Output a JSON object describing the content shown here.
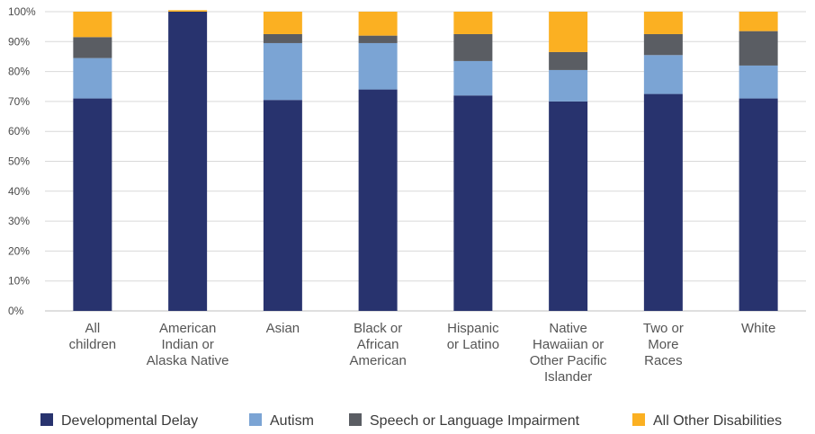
{
  "chart_data": {
    "type": "bar",
    "stacked": true,
    "categories": [
      [
        "All",
        "children"
      ],
      [
        "American",
        "Indian or",
        "Alaska Native"
      ],
      [
        "Asian"
      ],
      [
        "Black or",
        "African",
        "American"
      ],
      [
        "Hispanic",
        "or Latino"
      ],
      [
        "Native",
        "Hawaiian or",
        "Other Pacific",
        "Islander"
      ],
      [
        "Two or",
        "More",
        "Races"
      ],
      [
        "White"
      ]
    ],
    "series": [
      {
        "name": "Developmental Delay",
        "color": "#28336e",
        "values": [
          71,
          100,
          70.5,
          74,
          72,
          70,
          72.5,
          71
        ]
      },
      {
        "name": "Autism",
        "color": "#7ba4d4",
        "values": [
          13.5,
          0,
          19,
          15.5,
          11.5,
          10.5,
          13,
          11
        ]
      },
      {
        "name": "Speech or Language Impairment",
        "color": "#5a5d63",
        "values": [
          7,
          0,
          3,
          2.5,
          9,
          6,
          7,
          11.5
        ]
      },
      {
        "name": "All Other Disabilities",
        "color": "#fbb022",
        "values": [
          8.5,
          0.5,
          7.5,
          8,
          7.5,
          13.5,
          7.5,
          6.5
        ]
      }
    ],
    "yticks": [
      "0%",
      "10%",
      "20%",
      "30%",
      "40%",
      "50%",
      "60%",
      "70%",
      "80%",
      "90%",
      "100%"
    ],
    "ylim": [
      0,
      100
    ],
    "grid": true,
    "legend_position": "bottom"
  }
}
